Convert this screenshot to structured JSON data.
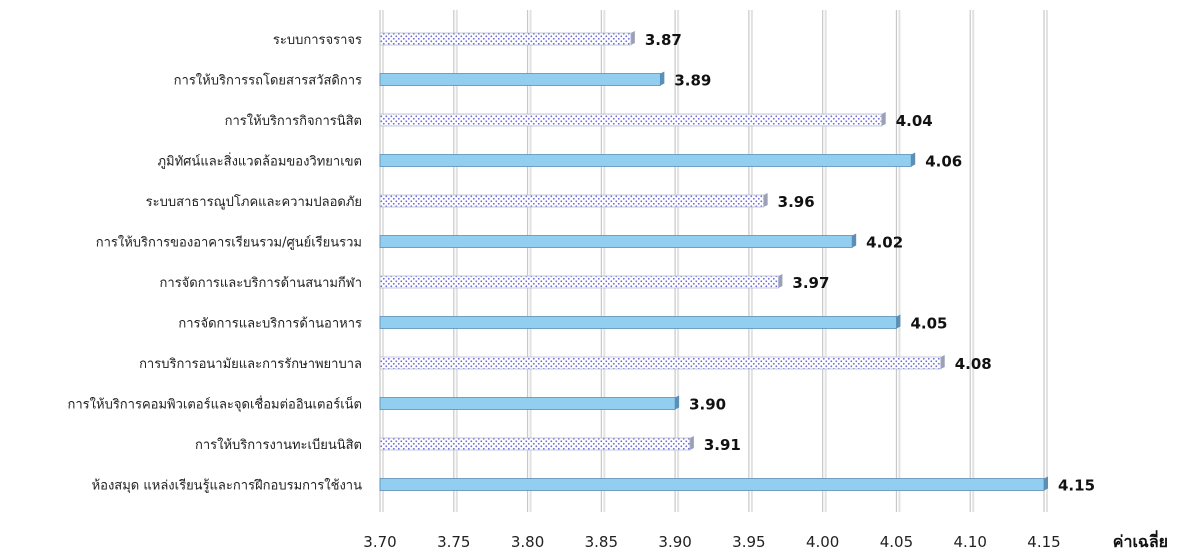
{
  "chart_data": {
    "type": "bar",
    "orientation": "horizontal",
    "categories": [
      "ระบบการจราจร",
      "การให้บริการรถโดยสารสวัสดิการ",
      "การให้บริการกิจการนิสิต",
      "ภูมิทัศน์และสิ่งแวดล้อมของวิทยาเขต",
      "ระบบสาธารณูปโภคและความปลอดภัย",
      "การให้บริการของอาคารเรียนรวม/ศูนย์เรียนรวม",
      "การจัดการและบริการด้านสนามกีฬา",
      "การจัดการและบริการด้านอาหาร",
      "การบริการอนามัยและการรักษาพยาบาล",
      "การให้บริการคอมพิวเตอร์และจุดเชื่อมต่ออินเตอร์เน็ต",
      "การให้บริการงานทะเบียนนิสิต",
      "ห้องสมุด แหล่งเรียนรู้และการฝึกอบรมการใช้งาน"
    ],
    "values": [
      3.87,
      3.89,
      4.04,
      4.06,
      3.96,
      4.02,
      3.97,
      4.05,
      4.08,
      3.9,
      3.91,
      4.15
    ],
    "value_labels": [
      "3.87",
      "3.89",
      "4.04",
      "4.06",
      "3.96",
      "4.02",
      "3.97",
      "4.05",
      "4.08",
      "3.90",
      "3.91",
      "4.15"
    ],
    "bar_styles": [
      "dotted",
      "solid",
      "dotted",
      "solid",
      "dotted",
      "solid",
      "dotted",
      "solid",
      "dotted",
      "solid",
      "dotted",
      "solid"
    ],
    "xlim": [
      3.7,
      4.15
    ],
    "x_ticks": [
      "3.70",
      "3.75",
      "3.80",
      "3.85",
      "3.90",
      "3.95",
      "4.00",
      "4.05",
      "4.10",
      "4.15"
    ],
    "xlabel": "ค่าเฉลี่ย",
    "title": "",
    "ylabel": "",
    "grid": "vertical",
    "legend": "none",
    "colors": {
      "solid_bar": "#92cef0",
      "solid_bar_edge": "#5b8fb5",
      "dotted_bar_dots": "#6b6bd8",
      "dotted_bar_bg": "#ffffff",
      "gridline": "#c8c8c8"
    }
  }
}
